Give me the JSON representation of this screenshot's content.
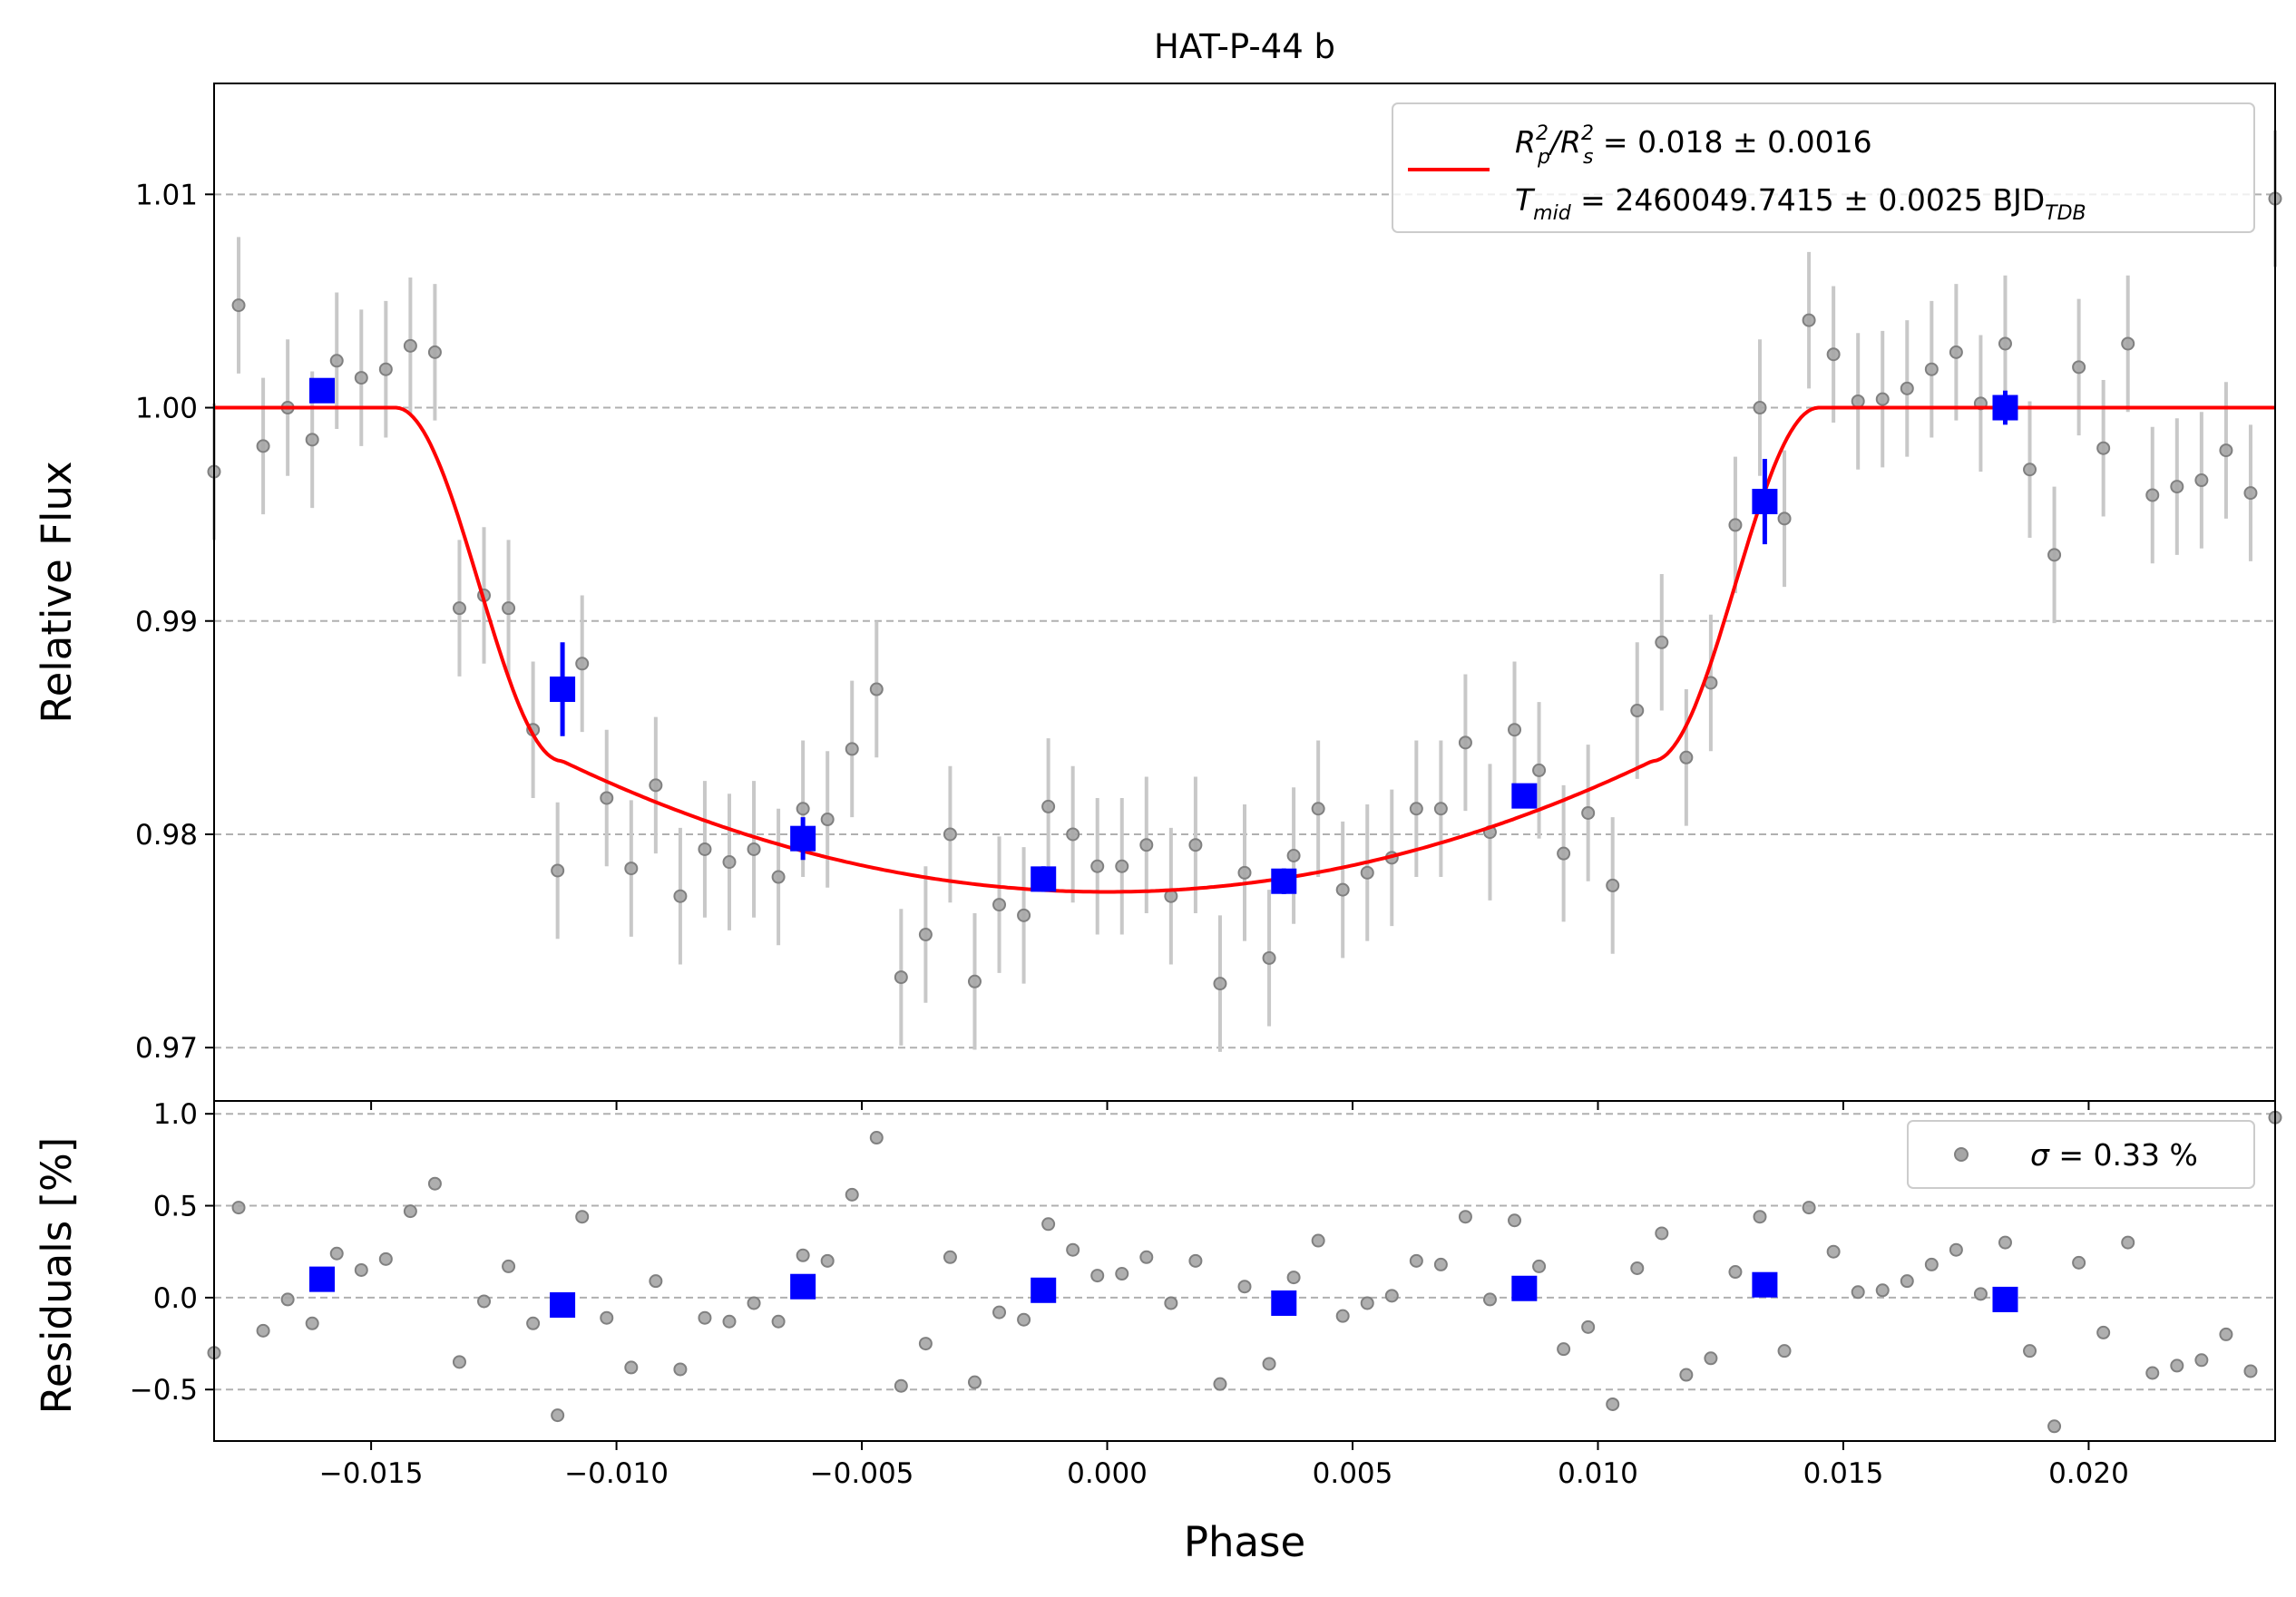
{
  "chart_data": [
    {
      "type": "scatter",
      "title": "HAT-P-44 b",
      "xlabel": "",
      "ylabel": "Relative Flux",
      "xlim": [
        -0.0182,
        0.0238
      ],
      "ylim": [
        0.9675,
        1.0152
      ],
      "x_ticks": [
        -0.015,
        -0.01,
        -0.005,
        0.0,
        0.005,
        0.01,
        0.015,
        0.02
      ],
      "y_ticks": [
        0.97,
        0.98,
        0.99,
        1.0,
        1.01
      ],
      "y_tick_labels": [
        "0.97",
        "0.98",
        "0.99",
        "1.00",
        "1.01"
      ],
      "grid": "horizontal dashed",
      "legend_position": "top-right",
      "legend": {
        "r_base": "R",
        "r_sub_p": "p",
        "r_sup": "2",
        "r_sub_s": "s",
        "r_value": " = 0.018 ± 0.0016",
        "t_base": "T",
        "t_sub": "mid",
        "t_value": " = 2460049.7415 ± 0.0025 BJD",
        "t_unit_sub": "TDB"
      },
      "model_params": {
        "depth": 0.0227,
        "t_full": 0.0111,
        "t_total": 0.0145
      },
      "colors": {
        "data": "#808080",
        "errorbar": "#c8c8c8",
        "binned": "#0000ff",
        "model": "#ff0000",
        "grid": "#b0b0b0"
      },
      "series": [
        {
          "name": "data",
          "x": [
            -0.0182,
            -0.0177,
            -0.0172,
            -0.0167,
            -0.0162,
            -0.0157,
            -0.0152,
            -0.0147,
            -0.0142,
            -0.0137,
            -0.0132,
            -0.0127,
            -0.0122,
            -0.0117,
            -0.0112,
            -0.0107,
            -0.0102,
            -0.0097,
            -0.0092,
            -0.0087,
            -0.0082,
            -0.0077,
            -0.0072,
            -0.0067,
            -0.0062,
            -0.0057,
            -0.0052,
            -0.0047,
            -0.0042,
            -0.0037,
            -0.0032,
            -0.0027,
            -0.0022,
            -0.0017,
            -0.0012,
            -0.0007,
            -0.0002,
            0.0003,
            0.0008,
            0.0013,
            0.0018,
            0.0023,
            0.0028,
            0.0033,
            0.0038,
            0.0043,
            0.0048,
            0.0053,
            0.0058,
            0.0063,
            0.0068,
            0.0073,
            0.0078,
            0.0083,
            0.0088,
            0.0093,
            0.0098,
            0.0103,
            0.0108,
            0.0113,
            0.0118,
            0.0123,
            0.0128,
            0.0133,
            0.0138,
            0.0143,
            0.0148,
            0.0153,
            0.0158,
            0.0163,
            0.0168,
            0.0173,
            0.0178,
            0.0183,
            0.0188,
            0.0193,
            0.0198,
            0.0203,
            0.0208,
            0.0213,
            0.0218,
            0.0223,
            0.0228,
            0.0233,
            0.0238
          ],
          "y": [
            0.997,
            1.0048,
            0.9982,
            1.0,
            0.9985,
            1.0022,
            1.0014,
            1.0018,
            1.0029,
            1.0026,
            0.9906,
            0.9912,
            0.9906,
            0.9849,
            0.9783,
            0.988,
            0.9817,
            0.9784,
            0.9823,
            0.9771,
            0.9793,
            0.9787,
            0.9793,
            0.978,
            0.9812,
            0.9807,
            0.984,
            0.9868,
            0.9733,
            0.9753,
            0.98,
            0.9731,
            0.9767,
            0.9762,
            0.9813,
            0.98,
            0.9785,
            0.9785,
            0.9795,
            0.9771,
            0.9795,
            0.973,
            0.9782,
            0.9742,
            0.979,
            0.9812,
            0.9774,
            0.9782,
            0.9789,
            0.9812,
            0.9812,
            0.9843,
            0.9801,
            0.9849,
            0.983,
            0.9791,
            0.981,
            0.9776,
            0.9858,
            0.989,
            0.9836,
            0.9871,
            0.9945,
            1.0,
            0.9948,
            1.0041,
            1.0025,
            1.0003,
            1.0004,
            1.0009,
            1.0018,
            1.0026,
            1.0002,
            1.003,
            0.9971,
            0.9931,
            1.0019,
            0.9981,
            1.003,
            0.9959,
            0.9963,
            0.9966,
            0.998,
            0.996,
            1.0098
          ],
          "yerr": 0.0032
        },
        {
          "name": "binned",
          "x": [
            -0.016,
            -0.0111,
            -0.0062,
            -0.0013,
            0.0036,
            0.0085,
            0.0134,
            0.0183
          ],
          "y": [
            1.0008,
            0.9868,
            0.9798,
            0.9779,
            0.9778,
            0.9818,
            0.9956,
            1.0
          ],
          "yerr": [
            0.0005,
            0.0022,
            0.001,
            0.0006,
            0.0006,
            0.0005,
            0.002,
            0.0008
          ]
        }
      ]
    },
    {
      "type": "scatter",
      "title": "",
      "xlabel": "Phase",
      "ylabel": "Residuals [%]",
      "xlim": [
        -0.0182,
        0.0238
      ],
      "ylim": [
        -0.78,
        1.07
      ],
      "x_ticks": [
        -0.015,
        -0.01,
        -0.005,
        0.0,
        0.005,
        0.01,
        0.015,
        0.02
      ],
      "x_tick_labels": [
        "−0.015",
        "−0.010",
        "−0.005",
        "0.000",
        "0.005",
        "0.010",
        "0.015",
        "0.020"
      ],
      "y_ticks": [
        -0.5,
        0.0,
        0.5,
        1.0
      ],
      "y_tick_labels": [
        "−0.5",
        "0.0",
        "0.5",
        "1.0"
      ],
      "grid": "horizontal dashed",
      "legend_position": "top-right",
      "legend": {
        "sigma_symbol": "σ",
        "sigma_value": " = 0.33 %"
      },
      "series": [
        {
          "name": "residuals",
          "y": [
            -0.3,
            0.49,
            -0.18,
            -0.01,
            -0.14,
            0.24,
            0.15,
            0.21,
            0.47,
            0.62,
            -0.35,
            -0.02,
            0.17,
            -0.14,
            -0.64,
            0.44,
            -0.11,
            -0.38,
            0.09,
            -0.39,
            -0.11,
            -0.13,
            -0.03,
            -0.13,
            0.23,
            0.2,
            0.56,
            0.87,
            -0.48,
            -0.25,
            0.22,
            -0.46,
            -0.08,
            -0.12,
            0.4,
            0.26,
            0.12,
            0.13,
            0.22,
            -0.03,
            0.2,
            -0.47,
            0.06,
            -0.36,
            0.11,
            0.31,
            -0.1,
            -0.03,
            0.01,
            0.2,
            0.18,
            0.44,
            -0.01,
            0.42,
            0.17,
            -0.28,
            -0.16,
            -0.58,
            0.16,
            0.35,
            -0.42,
            -0.33,
            0.14,
            0.44,
            -0.29,
            0.49,
            0.25,
            0.03,
            0.04,
            0.09,
            0.18,
            0.26,
            0.02,
            0.3,
            -0.29,
            -0.7,
            0.19,
            -0.19,
            0.3,
            -0.41,
            -0.37,
            -0.34,
            -0.2,
            -0.4,
            0.98
          ]
        },
        {
          "name": "binned residuals",
          "y": [
            0.1,
            -0.04,
            0.06,
            0.04,
            -0.03,
            0.05,
            0.07,
            -0.01
          ]
        }
      ]
    }
  ]
}
